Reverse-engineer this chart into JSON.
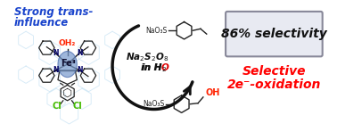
{
  "bg_color": "#ffffff",
  "box_text": "86% selectivity",
  "box_bg": "#e8eaf2",
  "box_edge": "#888899",
  "selective_line1": "Selective",
  "selective_line2": "2e⁻-oxidation",
  "selective_color": "#ff0000",
  "strong_trans_line1": "Strong trans-",
  "strong_trans_line2": "influence",
  "strong_trans_color": "#1a44cc",
  "fe_color": "#7799cc",
  "fe_label": "Fe",
  "fe_super": "II",
  "oh2_color": "#ff2200",
  "cl_color": "#44bb00",
  "n_color": "#000066",
  "arrow_color": "#111111",
  "na2s2o8_1": "Na",
  "na2s2o8_2": "2",
  "na2s2o8_3": "S",
  "na2s2o8_4": "2",
  "na2s2o8_5": "O",
  "na2s2o8_6": "8",
  "in_h2o_color": "#dd0000",
  "bond_color": "#222222",
  "ghost_color": "#aad4ee",
  "naos_color": "#222222"
}
